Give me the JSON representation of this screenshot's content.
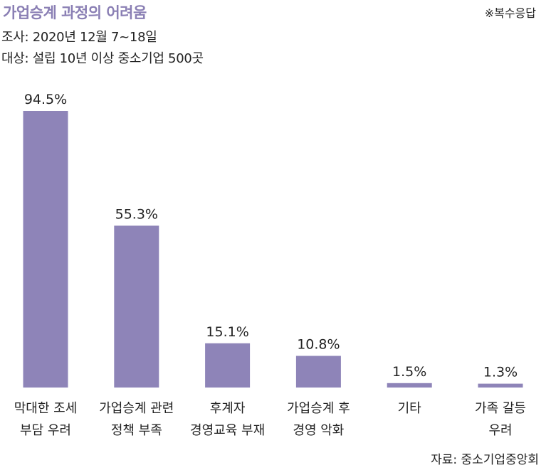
{
  "header": {
    "title": "가업승계 과정의 어려움",
    "note": "※복수응답",
    "survey": "조사: 2020년 12월 7~18일",
    "target": "대상: 설립 10년 이상 중소기업 500곳"
  },
  "footer": {
    "source": "자료: 중소기업중앙회"
  },
  "colors": {
    "bar": "#8e84b8",
    "title": "#8a7fb4",
    "text": "#222222"
  },
  "chart_data": {
    "type": "bar",
    "title": "가업승계 과정의 어려움",
    "xlabel": "",
    "ylabel": "",
    "ylim": [
      0,
      100
    ],
    "grid": false,
    "unit": "%",
    "categories": [
      [
        "막대한 조세",
        "부담 우려"
      ],
      [
        "가업승계 관련",
        "정책 부족"
      ],
      [
        "후계자",
        "경영교육 부재"
      ],
      [
        "가업승계 후",
        "경영 악화"
      ],
      [
        "기타"
      ],
      [
        "가족 갈등",
        "우려"
      ]
    ],
    "values": [
      94.5,
      55.3,
      15.1,
      10.8,
      1.5,
      1.3
    ],
    "value_labels": [
      "94.5%",
      "55.3%",
      "15.1%",
      "10.8%",
      "1.5%",
      "1.3%"
    ]
  }
}
